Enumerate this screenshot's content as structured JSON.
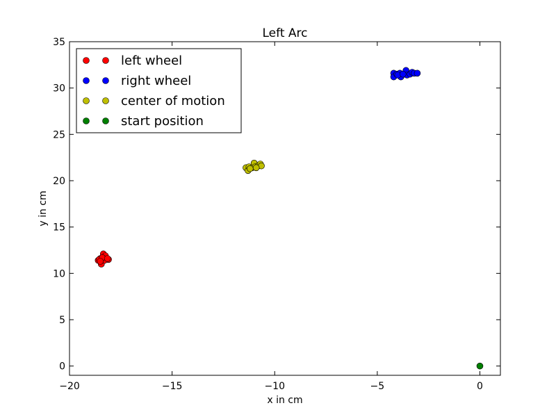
{
  "chart_data": {
    "type": "scatter",
    "title": "Left Arc",
    "xlabel": "x in cm",
    "ylabel": "y in cm",
    "xlim": [
      -20,
      1
    ],
    "ylim": [
      -1,
      35
    ],
    "xticks": [
      {
        "value": -20,
        "label": "−20"
      },
      {
        "value": -15,
        "label": "−15"
      },
      {
        "value": -10,
        "label": "−10"
      },
      {
        "value": -5,
        "label": "−5"
      },
      {
        "value": 0,
        "label": "0"
      }
    ],
    "yticks": [
      {
        "value": 0,
        "label": "0"
      },
      {
        "value": 5,
        "label": "5"
      },
      {
        "value": 10,
        "label": "10"
      },
      {
        "value": 15,
        "label": "15"
      },
      {
        "value": 20,
        "label": "20"
      },
      {
        "value": 25,
        "label": "25"
      },
      {
        "value": 30,
        "label": "30"
      },
      {
        "value": 35,
        "label": "35"
      }
    ],
    "grid": false,
    "legend_position": "top-left",
    "series": [
      {
        "name": "left wheel",
        "color": "#ff0000",
        "points": [
          [
            -18.6,
            11.4
          ],
          [
            -18.5,
            11.6
          ],
          [
            -18.4,
            11.3
          ],
          [
            -18.3,
            11.8
          ],
          [
            -18.35,
            12.1
          ],
          [
            -18.2,
            11.6
          ],
          [
            -18.1,
            11.5
          ],
          [
            -18.45,
            11.0
          ],
          [
            -18.3,
            11.4
          ],
          [
            -18.55,
            11.5
          ],
          [
            -18.25,
            11.9
          ],
          [
            -18.4,
            11.7
          ],
          [
            -18.15,
            11.6
          ],
          [
            -18.5,
            11.3
          ]
        ]
      },
      {
        "name": "right wheel",
        "color": "#0000ff",
        "points": [
          [
            -4.2,
            31.6
          ],
          [
            -4.2,
            31.2
          ],
          [
            -4.05,
            31.5
          ],
          [
            -3.9,
            31.6
          ],
          [
            -3.85,
            31.2
          ],
          [
            -3.7,
            31.5
          ],
          [
            -3.6,
            31.9
          ],
          [
            -3.55,
            31.4
          ],
          [
            -3.4,
            31.5
          ],
          [
            -3.3,
            31.7
          ],
          [
            -3.2,
            31.6
          ],
          [
            -3.05,
            31.6
          ],
          [
            -4.0,
            31.4
          ],
          [
            -3.75,
            31.5
          ]
        ]
      },
      {
        "name": "center of motion",
        "color": "#bfbf00",
        "points": [
          [
            -11.4,
            21.4
          ],
          [
            -11.3,
            21.1
          ],
          [
            -11.25,
            21.5
          ],
          [
            -11.1,
            21.4
          ],
          [
            -11.0,
            21.9
          ],
          [
            -10.95,
            21.5
          ],
          [
            -10.8,
            21.6
          ],
          [
            -10.7,
            21.8
          ],
          [
            -10.65,
            21.6
          ],
          [
            -11.2,
            21.3
          ],
          [
            -10.9,
            21.4
          ]
        ]
      },
      {
        "name": "start position",
        "color": "#008000",
        "points": [
          [
            0,
            0
          ]
        ]
      }
    ]
  }
}
